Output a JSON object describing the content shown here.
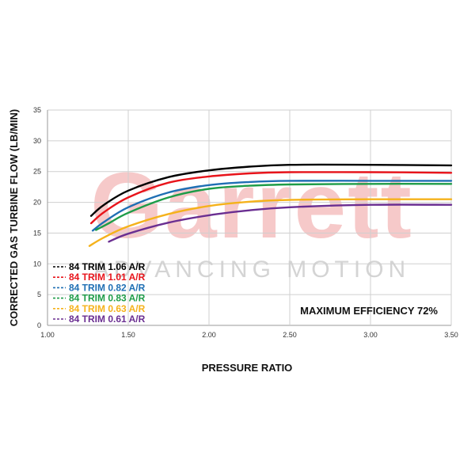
{
  "chart_data": {
    "type": "line",
    "title": "",
    "xlabel": "PRESSURE RATIO",
    "ylabel": "CORRECTED GAS TURBINE FLOW (LB/MIN)",
    "xlim": [
      1.0,
      3.5
    ],
    "ylim": [
      0,
      35
    ],
    "x_ticks": [
      "1.00",
      "1.50",
      "2.00",
      "2.50",
      "3.00",
      "3.50"
    ],
    "y_ticks": [
      "0",
      "5",
      "10",
      "15",
      "20",
      "25",
      "30",
      "35"
    ],
    "grid": true,
    "legend_placement": "bottom-left",
    "annotation": "MAXIMUM EFFICIENCY 72%",
    "watermark": {
      "brand": "Garrett",
      "tagline": "ADVANCING MOTION"
    },
    "series": [
      {
        "name": "84 TRIM 1.06 A/R",
        "color": "#000000",
        "x": [
          1.27,
          1.35,
          1.5,
          1.75,
          2.0,
          2.25,
          2.5,
          3.0,
          3.5
        ],
        "y": [
          17.8,
          19.6,
          21.9,
          24.1,
          25.2,
          25.8,
          26.1,
          26.1,
          26.0
        ]
      },
      {
        "name": "84 TRIM 1.01 A/R",
        "color": "#e8141b",
        "x": [
          1.27,
          1.35,
          1.5,
          1.75,
          2.0,
          2.25,
          2.5,
          3.0,
          3.5
        ],
        "y": [
          16.6,
          18.4,
          20.8,
          23.2,
          24.2,
          24.7,
          24.9,
          24.9,
          24.8
        ]
      },
      {
        "name": "84 TRIM 0.82 A/R",
        "color": "#1f6fb4",
        "x": [
          1.28,
          1.35,
          1.5,
          1.75,
          2.0,
          2.25,
          2.5,
          3.0,
          3.5
        ],
        "y": [
          15.4,
          16.8,
          19.2,
          21.6,
          22.8,
          23.3,
          23.5,
          23.5,
          23.5
        ]
      },
      {
        "name": "84 TRIM 0.83 A/R",
        "color": "#1e9c48",
        "x": [
          1.3,
          1.38,
          1.5,
          1.75,
          2.0,
          2.25,
          2.5,
          3.0,
          3.5
        ],
        "y": [
          15.5,
          16.6,
          18.3,
          20.8,
          22.2,
          22.7,
          22.9,
          23.0,
          23.0
        ]
      },
      {
        "name": "84 TRIM 0.63 A/R",
        "color": "#f5b21b",
        "x": [
          1.26,
          1.35,
          1.5,
          1.75,
          2.0,
          2.25,
          2.5,
          3.0,
          3.5
        ],
        "y": [
          12.9,
          14.3,
          16.1,
          18.1,
          19.4,
          20.1,
          20.4,
          20.5,
          20.5
        ]
      },
      {
        "name": "84 TRIM 0.61 A/R",
        "color": "#6a2e91",
        "x": [
          1.38,
          1.5,
          1.75,
          2.0,
          2.25,
          2.5,
          3.0,
          3.5
        ],
        "y": [
          13.6,
          14.9,
          16.7,
          17.9,
          18.7,
          19.2,
          19.6,
          19.6
        ]
      }
    ]
  }
}
